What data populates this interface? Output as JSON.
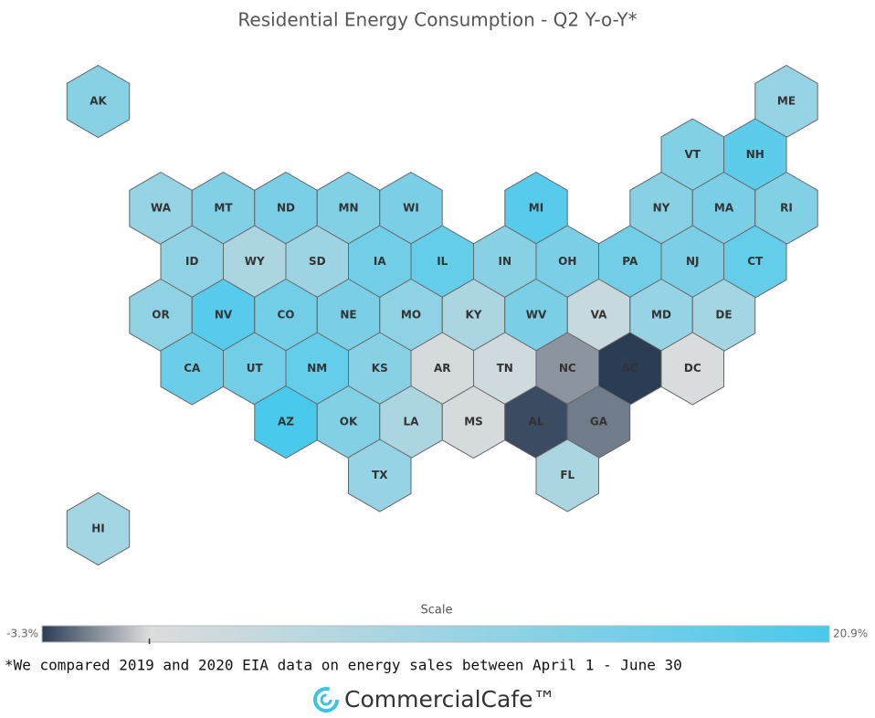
{
  "chart_data": {
    "type": "hexmap",
    "title": "Residential Energy Consumption - Q2 Y-o-Y*",
    "states": [
      "AK",
      "ME",
      "VT",
      "NH",
      "WA",
      "MT",
      "ND",
      "MN",
      "WI",
      "MI",
      "NY",
      "MA",
      "RI",
      "ID",
      "WY",
      "SD",
      "IA",
      "IL",
      "IN",
      "OH",
      "PA",
      "NJ",
      "CT",
      "OR",
      "NV",
      "CO",
      "NE",
      "MO",
      "KY",
      "WV",
      "VA",
      "MD",
      "DE",
      "CA",
      "UT",
      "NM",
      "KS",
      "AR",
      "TN",
      "NC",
      "SC",
      "DC",
      "AZ",
      "OK",
      "LA",
      "MS",
      "AL",
      "GA",
      "TX",
      "FL",
      "HI"
    ],
    "values": [
      12,
      10,
      13,
      18,
      10,
      13,
      14,
      13,
      14,
      19,
      12,
      14,
      13,
      11,
      7,
      9,
      15,
      17,
      12,
      14,
      15,
      14,
      17,
      11,
      19,
      15,
      14,
      11,
      7,
      14,
      3,
      10,
      8,
      16,
      15,
      17,
      12,
      1,
      2,
      -1.5,
      -3.3,
      0.5,
      20.9,
      13,
      7,
      1,
      -3,
      -2,
      10,
      7,
      8
    ],
    "legend": {
      "title": "Scale",
      "min": {
        "value": -3.3,
        "label": "-3.3%"
      },
      "max": {
        "value": 20.9,
        "label": "20.9%"
      },
      "midpoint": 0,
      "colors": [
        "#2b3d55",
        "#dcdcdc",
        "#49c9ec"
      ]
    }
  },
  "footnote": "*We compared 2019 and 2020 EIA data on energy sales between April 1 - June 30",
  "logo": "CommercialCafe™"
}
